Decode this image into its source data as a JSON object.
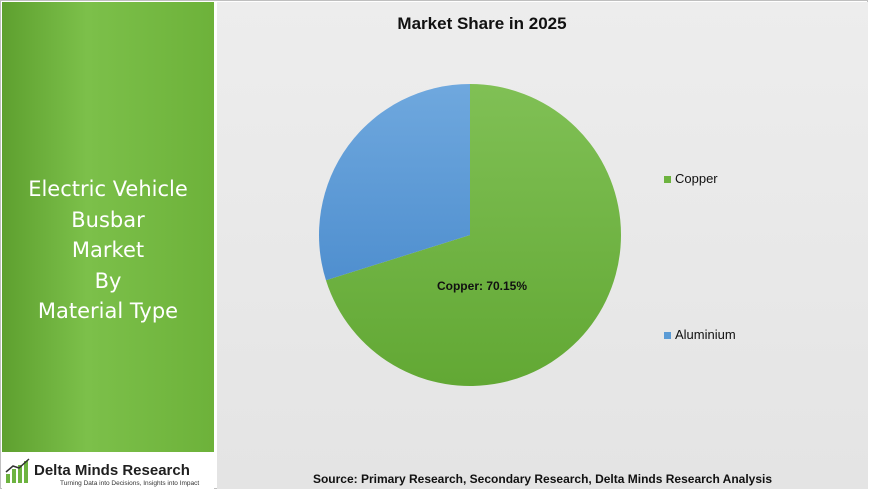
{
  "sidebar": {
    "title_lines": [
      "Electric Vehicle",
      "Busbar",
      "Market",
      "By",
      "Material Type"
    ],
    "brand_name": "Delta Minds Research",
    "brand_tagline": "Turning Data into Decisions, Insights into Impact"
  },
  "chart_data": {
    "type": "pie",
    "title": "Market Share in 2025",
    "slices": [
      {
        "label": "Copper",
        "value": 70.15,
        "color": "#6db33f",
        "data_label": "Copper: 70.15%"
      },
      {
        "label": "Aluminium",
        "value": 29.85,
        "color": "#5b9bd5",
        "data_label": ""
      }
    ],
    "legend": {
      "placement": "right",
      "entries": [
        "Copper",
        "Aluminium"
      ]
    }
  },
  "source_note": "Source: Primary Research, Secondary Research, Delta Minds Research Analysis"
}
